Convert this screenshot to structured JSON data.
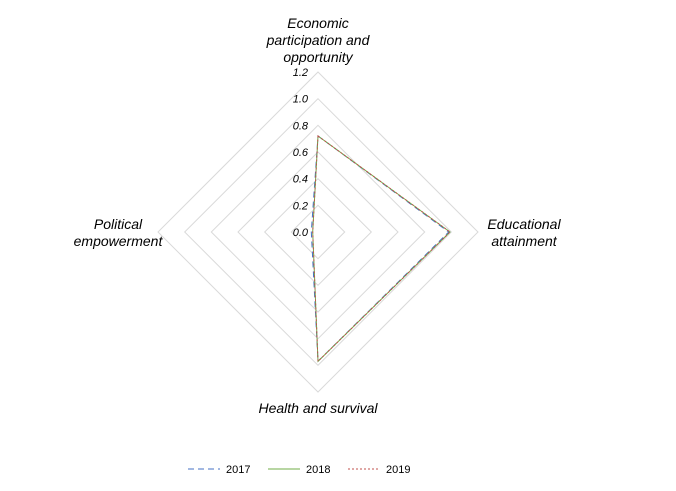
{
  "chart_data": {
    "type": "radar",
    "title": "",
    "axes": [
      [
        "Economic",
        "participation and",
        "opportunity"
      ],
      [
        "Educational",
        "attainment"
      ],
      [
        "Health and survival"
      ],
      [
        "Political",
        "empowerment"
      ]
    ],
    "rlim": [
      0,
      1.2
    ],
    "ticks": [
      "0.0",
      "0.2",
      "0.4",
      "0.6",
      "0.8",
      "1.0",
      "1.2"
    ],
    "tick_values": [
      0,
      0.2,
      0.4,
      0.6,
      0.8,
      1.0,
      1.2
    ],
    "series": [
      {
        "name": "2017",
        "values": [
          0.72,
          0.98,
          0.97,
          0.05
        ],
        "color": "#4472C4",
        "style": "dash"
      },
      {
        "name": "2018",
        "values": [
          0.72,
          0.99,
          0.97,
          0.04
        ],
        "color": "#70AD47",
        "style": "solid"
      },
      {
        "name": "2019",
        "values": [
          0.72,
          0.99,
          0.97,
          0.04
        ],
        "color": "#C0504D",
        "style": "dot"
      }
    ],
    "grid_color": "#D9D9D9",
    "legend_position": "bottom"
  }
}
